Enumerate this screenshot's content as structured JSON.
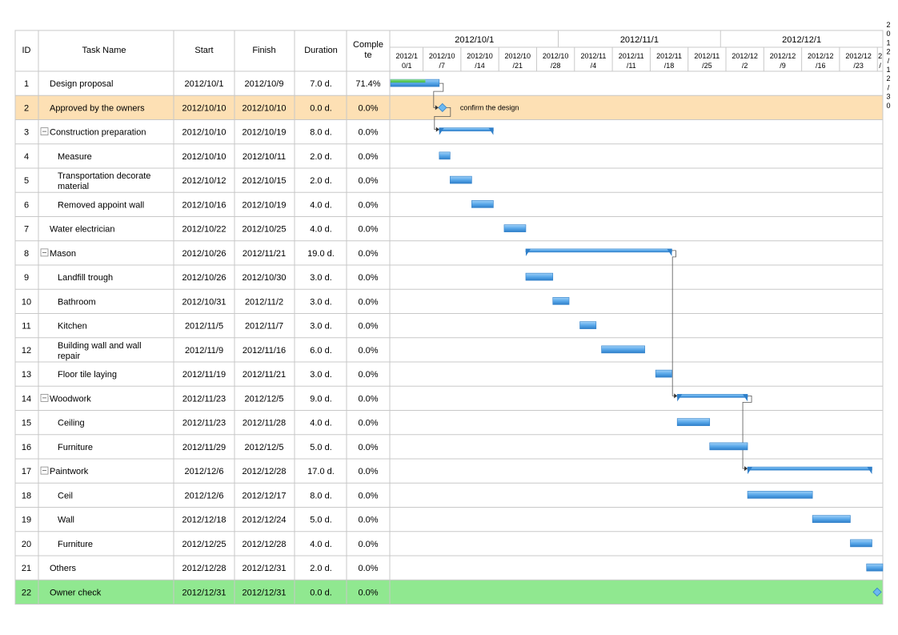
{
  "table": {
    "headers": {
      "id": "ID",
      "task": "Task Name",
      "start": "Start",
      "finish": "Finish",
      "duration": "Duration",
      "complete_line1": "Comple",
      "complete_line2": "te"
    }
  },
  "timescale": {
    "months": [
      "2012/10/1",
      "2012/11/1",
      "2012/12/1"
    ],
    "weeks": [
      [
        "2012/1",
        "0/1"
      ],
      [
        "2012/10",
        "/7"
      ],
      [
        "2012/10",
        "/14"
      ],
      [
        "2012/10",
        "/21"
      ],
      [
        "2012/10",
        "/28"
      ],
      [
        "2012/11",
        "/4"
      ],
      [
        "2012/11",
        "/11"
      ],
      [
        "2012/11",
        "/18"
      ],
      [
        "2012/11",
        "/25"
      ],
      [
        "2012/12",
        "/2"
      ],
      [
        "2012/12",
        "/9"
      ],
      [
        "2012/12",
        "/16"
      ],
      [
        "2012/12",
        "/23"
      ],
      [
        "2",
        "/"
      ]
    ],
    "edge_vertical_text": "2012/12/30"
  },
  "colors": {
    "bar": "#5aa9ea",
    "bar_dark": "#2f7fc9",
    "progress": "#3cb83c",
    "highlight_row": "#fde0b4",
    "final_row": "#90e890",
    "grid": "#c8c8c8"
  },
  "chart_data": {
    "type": "gantt",
    "tasks": [
      {
        "id": "1",
        "name": "Design proposal",
        "start": "2012/10/1",
        "finish": "2012/10/9",
        "duration": "7.0 d.",
        "complete": "71.4%",
        "level": 0
      },
      {
        "id": "2",
        "name": "Approved by the owners",
        "start": "2012/10/10",
        "finish": "2012/10/10",
        "duration": "0.0 d.",
        "complete": "0.0%",
        "level": 0,
        "milestone": true,
        "label": "confirm the design",
        "highlight": "orange"
      },
      {
        "id": "3",
        "name": "Construction preparation",
        "start": "2012/10/10",
        "finish": "2012/10/19",
        "duration": "8.0 d.",
        "complete": "0.0%",
        "level": 0,
        "summary": true
      },
      {
        "id": "4",
        "name": "Measure",
        "start": "2012/10/10",
        "finish": "2012/10/11",
        "duration": "2.0 d.",
        "complete": "0.0%",
        "level": 1
      },
      {
        "id": "5",
        "name": "Transportation decorate material",
        "start": "2012/10/12",
        "finish": "2012/10/15",
        "duration": "2.0 d.",
        "complete": "0.0%",
        "level": 1
      },
      {
        "id": "6",
        "name": "Removed appoint wall",
        "start": "2012/10/16",
        "finish": "2012/10/19",
        "duration": "4.0 d.",
        "complete": "0.0%",
        "level": 1
      },
      {
        "id": "7",
        "name": "Water electrician",
        "start": "2012/10/22",
        "finish": "2012/10/25",
        "duration": "4.0 d.",
        "complete": "0.0%",
        "level": 0
      },
      {
        "id": "8",
        "name": "Mason",
        "start": "2012/10/26",
        "finish": "2012/11/21",
        "duration": "19.0 d.",
        "complete": "0.0%",
        "level": 0,
        "summary": true
      },
      {
        "id": "9",
        "name": "Landfill trough",
        "start": "2012/10/26",
        "finish": "2012/10/30",
        "duration": "3.0 d.",
        "complete": "0.0%",
        "level": 1
      },
      {
        "id": "10",
        "name": "Bathroom",
        "start": "2012/10/31",
        "finish": "2012/11/2",
        "duration": "3.0 d.",
        "complete": "0.0%",
        "level": 1
      },
      {
        "id": "11",
        "name": "Kitchen",
        "start": "2012/11/5",
        "finish": "2012/11/7",
        "duration": "3.0 d.",
        "complete": "0.0%",
        "level": 1
      },
      {
        "id": "12",
        "name": "Building wall and wall repair",
        "start": "2012/11/9",
        "finish": "2012/11/16",
        "duration": "6.0 d.",
        "complete": "0.0%",
        "level": 1
      },
      {
        "id": "13",
        "name": "Floor tile laying",
        "start": "2012/11/19",
        "finish": "2012/11/21",
        "duration": "3.0 d.",
        "complete": "0.0%",
        "level": 1
      },
      {
        "id": "14",
        "name": "Woodwork",
        "start": "2012/11/23",
        "finish": "2012/12/5",
        "duration": "9.0 d.",
        "complete": "0.0%",
        "level": 0,
        "summary": true
      },
      {
        "id": "15",
        "name": "Ceiling",
        "start": "2012/11/23",
        "finish": "2012/11/28",
        "duration": "4.0 d.",
        "complete": "0.0%",
        "level": 1
      },
      {
        "id": "16",
        "name": "Furniture",
        "start": "2012/11/29",
        "finish": "2012/12/5",
        "duration": "5.0 d.",
        "complete": "0.0%",
        "level": 1
      },
      {
        "id": "17",
        "name": "Paintwork",
        "start": "2012/12/6",
        "finish": "2012/12/28",
        "duration": "17.0 d.",
        "complete": "0.0%",
        "level": 0,
        "summary": true
      },
      {
        "id": "18",
        "name": "Ceil",
        "start": "2012/12/6",
        "finish": "2012/12/17",
        "duration": "8.0 d.",
        "complete": "0.0%",
        "level": 1
      },
      {
        "id": "19",
        "name": "Wall",
        "start": "2012/12/18",
        "finish": "2012/12/24",
        "duration": "5.0 d.",
        "complete": "0.0%",
        "level": 1
      },
      {
        "id": "20",
        "name": "Furniture",
        "start": "2012/12/25",
        "finish": "2012/12/28",
        "duration": "4.0 d.",
        "complete": "0.0%",
        "level": 1
      },
      {
        "id": "21",
        "name": "Others",
        "start": "2012/12/28",
        "finish": "2012/12/31",
        "duration": "2.0 d.",
        "complete": "0.0%",
        "level": 0
      },
      {
        "id": "22",
        "name": "Owner check",
        "start": "2012/12/31",
        "finish": "2012/12/31",
        "duration": "0.0 d.",
        "complete": "0.0%",
        "level": 0,
        "milestone": true,
        "highlight": "green"
      }
    ],
    "links": [
      [
        "1",
        "2"
      ],
      [
        "2",
        "3"
      ],
      [
        "8",
        "14"
      ],
      [
        "14",
        "17"
      ]
    ]
  }
}
